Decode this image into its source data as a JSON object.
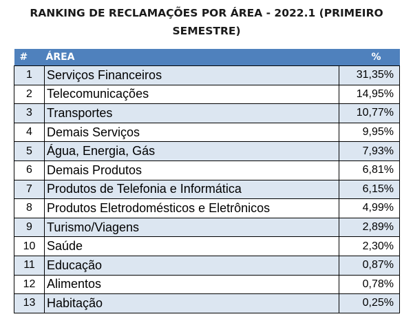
{
  "title_line1": "RANKING DE RECLAMAÇÕES POR ÁREA - 2022.1 (PRIMEIRO",
  "title_line2": "SEMESTRE)",
  "columns": [
    "#",
    "ÁREA",
    "%"
  ],
  "chart_data": {
    "type": "table",
    "title": "RANKING DE RECLAMAÇÕES POR ÁREA - 2022.1 (PRIMEIRO SEMESTRE)",
    "columns": [
      "#",
      "ÁREA",
      "%"
    ],
    "rows": [
      {
        "rank": "1",
        "area": "Serviços Financeiros",
        "pct": "31,35%"
      },
      {
        "rank": "2",
        "area": "Telecomunicações",
        "pct": "14,95%"
      },
      {
        "rank": "3",
        "area": "Transportes",
        "pct": "10,77%"
      },
      {
        "rank": "4",
        "area": "Demais Serviços",
        "pct": "9,95%"
      },
      {
        "rank": "5",
        "area": "Água, Energia, Gás",
        "pct": "7,93%"
      },
      {
        "rank": "6",
        "area": "Demais Produtos",
        "pct": "6,81%"
      },
      {
        "rank": "7",
        "area": "Produtos de Telefonia e Informática",
        "pct": "6,15%"
      },
      {
        "rank": "8",
        "area": "Produtos Eletrodomésticos e Eletrônicos",
        "pct": "4,99%"
      },
      {
        "rank": "9",
        "area": "Turismo/Viagens",
        "pct": "2,89%"
      },
      {
        "rank": "10",
        "area": "Saúde",
        "pct": "2,30%"
      },
      {
        "rank": "11",
        "area": "Educação",
        "pct": "0,87%"
      },
      {
        "rank": "12",
        "area": "Alimentos",
        "pct": "0,78%"
      },
      {
        "rank": "13",
        "area": "Habitação",
        "pct": "0,25%"
      }
    ]
  },
  "colors": {
    "header_bg": "#4f81bd",
    "header_text": "#ffffff",
    "row_alt_bg": "#dce6f1",
    "row_plain_bg": "#ffffff",
    "border": "#000000"
  }
}
